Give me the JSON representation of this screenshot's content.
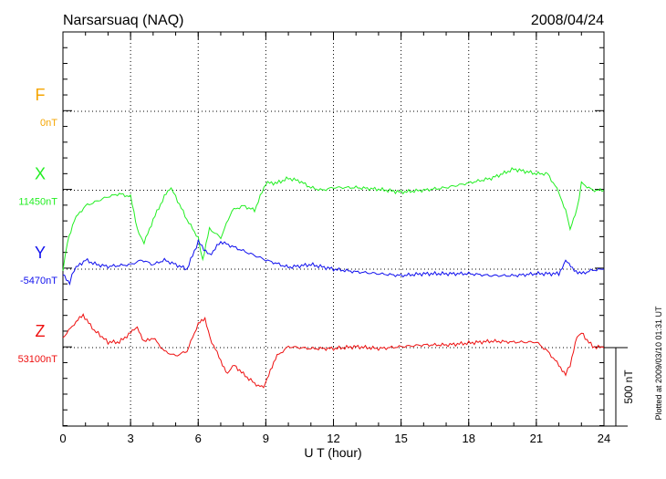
{
  "chart_data": {
    "type": "line",
    "title": "Narsarsuaq (NAQ)",
    "date": "2008/04/24",
    "xlabel": "U T (hour)",
    "xlim": [
      0,
      24
    ],
    "xticks": [
      "0",
      "3",
      "6",
      "9",
      "12",
      "15",
      "18",
      "21",
      "24"
    ],
    "scale_label": "500 nT",
    "scale_nT": 500,
    "footer": "Plotted at 2009/03/10 01:31 UT",
    "series": [
      {
        "name": "F",
        "baseline_label": "0nT",
        "color": "#f5a500",
        "x": [],
        "offset_nT": []
      },
      {
        "name": "X",
        "baseline_label": "11450nT",
        "color": "#22ee22",
        "x": [
          0,
          0.2,
          0.5,
          1,
          1.5,
          2,
          2.5,
          3,
          3.3,
          3.6,
          4,
          4.5,
          4.8,
          5,
          5.5,
          6,
          6.2,
          6.5,
          7,
          7.5,
          8,
          8.5,
          9,
          9.5,
          10,
          10.5,
          11,
          11.5,
          12,
          13,
          14,
          15,
          16,
          17,
          18,
          19,
          20,
          21,
          21.5,
          22,
          22.3,
          22.5,
          22.8,
          23,
          23.5,
          24
        ],
        "offset_nT": [
          -505,
          -331,
          -186,
          -99,
          -70,
          -41,
          -23,
          -41,
          -244,
          -337,
          -186,
          -41,
          17,
          -41,
          -186,
          -302,
          -447,
          -244,
          -302,
          -128,
          -99,
          -128,
          46,
          46,
          76,
          58,
          17,
          0,
          17,
          17,
          6,
          -12,
          0,
          17,
          46,
          76,
          134,
          105,
          105,
          -12,
          -128,
          -244,
          -128,
          46,
          0,
          0
        ]
      },
      {
        "name": "Y",
        "baseline_label": "-5470nT",
        "color": "#1010ee",
        "x": [
          0,
          0.3,
          0.5,
          1,
          1.5,
          2,
          3,
          3.5,
          4,
          4.5,
          5,
          5.5,
          6,
          6.5,
          7,
          7.5,
          8,
          8.5,
          9,
          10,
          11,
          12,
          13,
          14,
          15,
          16,
          17,
          18,
          19,
          20,
          21,
          22,
          22.3,
          22.6,
          23,
          23.5,
          24
        ],
        "offset_nT": [
          -29,
          -87,
          0,
          58,
          29,
          17,
          29,
          58,
          29,
          58,
          29,
          0,
          174,
          87,
          174,
          145,
          116,
          87,
          58,
          12,
          29,
          0,
          -17,
          -29,
          -41,
          -29,
          -29,
          -29,
          -41,
          -41,
          -29,
          -29,
          58,
          0,
          -29,
          -6,
          0
        ]
      },
      {
        "name": "Z",
        "baseline_label": "53100nT",
        "color": "#ee1010",
        "x": [
          0,
          0.5,
          0.9,
          1.3,
          2,
          2.5,
          3,
          3.3,
          3.6,
          4,
          4.5,
          5,
          5.5,
          6,
          6.3,
          6.6,
          7,
          7.3,
          7.6,
          8,
          8.5,
          8.9,
          9.2,
          9.5,
          10,
          11,
          12,
          13,
          14,
          15,
          16,
          17,
          18,
          19,
          20,
          21,
          21.5,
          22,
          22.3,
          22.5,
          22.8,
          23,
          23.5,
          24
        ],
        "offset_nT": [
          64,
          151,
          209,
          122,
          35,
          35,
          93,
          134,
          35,
          64,
          -23,
          -52,
          -23,
          151,
          180,
          35,
          -81,
          -168,
          -110,
          -168,
          -227,
          -256,
          -140,
          -52,
          6,
          -6,
          -6,
          6,
          -6,
          6,
          17,
          17,
          29,
          41,
          35,
          35,
          -23,
          -110,
          -168,
          -110,
          64,
          93,
          6,
          0
        ]
      }
    ]
  }
}
